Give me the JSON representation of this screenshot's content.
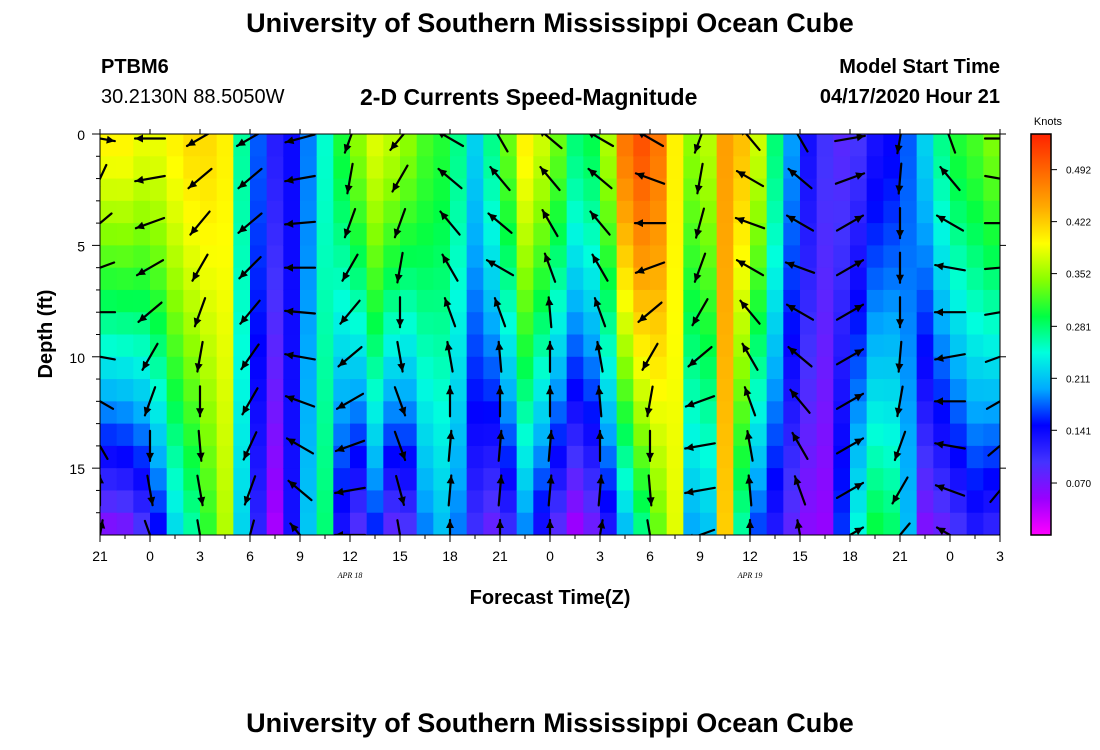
{
  "header": {
    "title": "University of Southern Mississippi Ocean Cube",
    "station_id": "PTBM6",
    "station_coords": "30.2130N 88.5050W",
    "subtitle": "2-D Currents Speed-Magnitude",
    "start_label": "Model Start Time",
    "start_value": "04/17/2020 Hour 21"
  },
  "footer": {
    "title": "University of Southern Mississippi Ocean Cube"
  },
  "colors": {
    "palette": [
      "#ff00ff",
      "#9900ff",
      "#4433ff",
      "#0000ff",
      "#00aaff",
      "#00ffdd",
      "#00ff44",
      "#88ff00",
      "#ffff00",
      "#ffaa00",
      "#ff6600",
      "#ff2200"
    ]
  },
  "chart_data": {
    "type": "heatmap",
    "xlabel": "Forecast Time(Z)",
    "ylabel": "Depth (ft)",
    "x_ticks": [
      "21",
      "0",
      "3",
      "6",
      "9",
      "12",
      "15",
      "18",
      "21",
      "0",
      "3",
      "6",
      "9",
      "12",
      "15",
      "18",
      "21",
      "0",
      "3"
    ],
    "x_tick_hours": [
      0,
      3,
      6,
      9,
      12,
      15,
      18,
      21,
      24,
      27,
      30,
      33,
      36,
      39,
      42,
      45,
      48,
      51,
      54
    ],
    "date_labels": [
      {
        "text": "APR 18",
        "hour": 15
      },
      {
        "text": "APR 19",
        "hour": 39
      }
    ],
    "xlim": [
      0,
      54
    ],
    "ylim": [
      0,
      18
    ],
    "y_ticks": [
      "0",
      "5",
      "10",
      "15"
    ],
    "y_tick_values": [
      0,
      5,
      10,
      15
    ],
    "colorbar": {
      "unit": "Knots",
      "ticks": [
        "0.070",
        "0.141",
        "0.211",
        "0.281",
        "0.352",
        "0.422",
        "0.492"
      ],
      "min": 0.0,
      "max": 0.54
    },
    "speed_profile": {
      "hours": [
        0,
        1.5,
        3,
        4.5,
        6,
        7.5,
        9,
        10.5,
        12,
        13.5,
        15,
        16.5,
        18,
        19.5,
        21,
        22.5,
        24,
        25.5,
        27,
        28.5,
        30,
        31.5,
        33,
        34.5,
        36,
        37.5,
        39,
        40.5,
        42,
        43.5,
        45,
        46.5,
        48,
        49.5,
        51,
        52.5,
        54
      ],
      "surface": [
        0.4,
        0.4,
        0.38,
        0.4,
        0.42,
        0.4,
        0.2,
        0.12,
        0.15,
        0.25,
        0.33,
        0.38,
        0.36,
        0.32,
        0.3,
        0.22,
        0.3,
        0.4,
        0.36,
        0.28,
        0.3,
        0.48,
        0.52,
        0.4,
        0.32,
        0.45,
        0.42,
        0.28,
        0.15,
        0.1,
        0.08,
        0.13,
        0.15,
        0.22,
        0.3,
        0.32,
        0.35
      ],
      "bottom": [
        0.05,
        0.06,
        0.1,
        0.22,
        0.28,
        0.36,
        0.15,
        0.04,
        0.18,
        0.28,
        0.05,
        0.15,
        0.04,
        0.18,
        0.22,
        0.1,
        0.06,
        0.18,
        0.1,
        0.04,
        0.08,
        0.2,
        0.3,
        0.38,
        0.1,
        0.42,
        0.18,
        0.12,
        0.06,
        0.05,
        0.22,
        0.3,
        0.28,
        0.06,
        0.08,
        0.12,
        0.1
      ]
    },
    "vector_hours": [
      0,
      3,
      6,
      9,
      12,
      15,
      18,
      21,
      24,
      27,
      30,
      33,
      36,
      39,
      42,
      45,
      48,
      51,
      54
    ],
    "vector_depths": [
      0.2,
      2,
      4,
      6,
      8,
      10,
      12,
      14,
      16,
      18
    ],
    "vector_directions_deg": [
      [
        100,
        205,
        230,
        250,
        270,
        280,
        300,
        330,
        0,
        10
      ],
      [
        270,
        260,
        250,
        240,
        230,
        210,
        200,
        180,
        170,
        160
      ],
      [
        240,
        230,
        220,
        210,
        200,
        190,
        180,
        175,
        170,
        170
      ],
      [
        240,
        230,
        230,
        225,
        220,
        215,
        210,
        205,
        200,
        195
      ],
      [
        255,
        260,
        265,
        270,
        275,
        280,
        290,
        300,
        310,
        320
      ],
      [
        200,
        190,
        200,
        210,
        220,
        230,
        240,
        250,
        260,
        270
      ],
      [
        220,
        210,
        200,
        190,
        180,
        170,
        160,
        160,
        165,
        170
      ],
      [
        300,
        310,
        320,
        330,
        340,
        350,
        0,
        5,
        5,
        0
      ],
      [
        330,
        320,
        310,
        300,
        340,
        355,
        0,
        5,
        5,
        0
      ],
      [
        310,
        320,
        330,
        340,
        355,
        0,
        0,
        5,
        5,
        0
      ],
      [
        300,
        310,
        320,
        330,
        340,
        350,
        355,
        0,
        5,
        10
      ],
      [
        300,
        290,
        270,
        250,
        230,
        210,
        190,
        180,
        175,
        170
      ],
      [
        200,
        190,
        195,
        200,
        210,
        230,
        250,
        260,
        260,
        250
      ],
      [
        320,
        300,
        290,
        300,
        320,
        330,
        340,
        350,
        355,
        0
      ],
      [
        330,
        310,
        300,
        290,
        300,
        310,
        320,
        330,
        340,
        350
      ],
      [
        80,
        70,
        60,
        60,
        60,
        60,
        60,
        60,
        60,
        60
      ],
      [
        190,
        185,
        180,
        180,
        180,
        185,
        190,
        200,
        210,
        220
      ],
      [
        340,
        320,
        300,
        280,
        270,
        260,
        270,
        280,
        290,
        300
      ],
      [
        90,
        100,
        90,
        85,
        80,
        70,
        60,
        50,
        40,
        30
      ]
    ]
  }
}
